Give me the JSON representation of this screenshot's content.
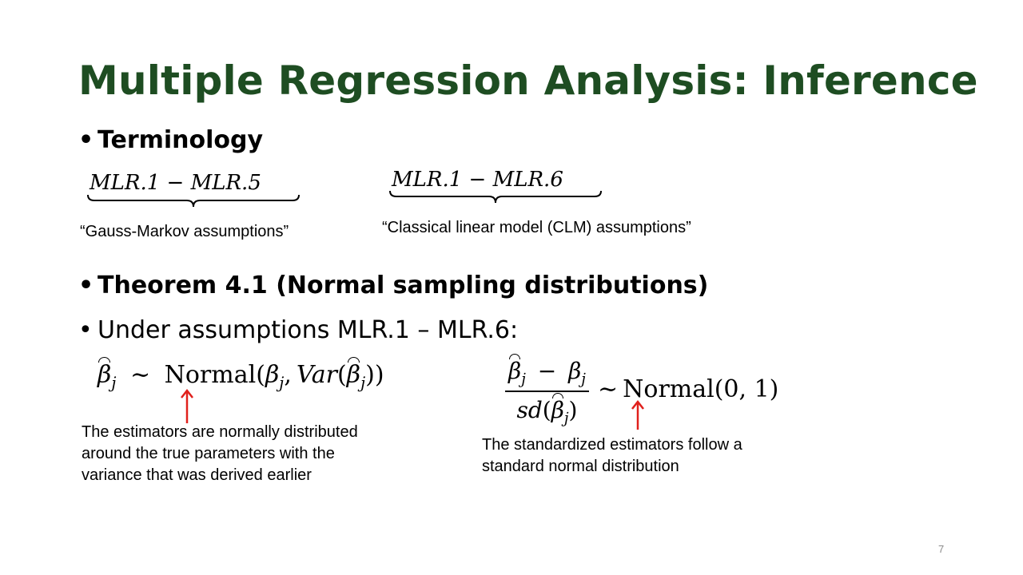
{
  "slide": {
    "title": "Multiple Regression Analysis: Inference",
    "page_number": "7"
  },
  "bullets": {
    "marker": "•",
    "terminology": "Terminology",
    "theorem": "Theorem 4.1 (Normal sampling distributions)",
    "under": "Under assumptions MLR.1 – MLR.6:"
  },
  "terminology": {
    "gm_math": "MLR.1 − MLR.5",
    "gm_caption": "“Gauss-Markov assumptions”",
    "clm_math": "MLR.1 − MLR.6",
    "clm_caption": "“Classical linear model (CLM) assumptions”"
  },
  "formulas": {
    "left": {
      "beta": "β",
      "sub": "j",
      "sim": "∼",
      "normal": "Normal",
      "open": "(",
      "comma": ",",
      "var": "Var",
      "close": "))"
    },
    "right": {
      "beta": "β",
      "sub": "j",
      "minus": "−",
      "sd": "sd",
      "sim": "∼",
      "normal": "Normal(0, 1)"
    }
  },
  "annotations": {
    "left": "The estimators are normally distributed around the true parameters with the variance that was derived earlier",
    "right": "The standardized estimators follow a standard normal distribution"
  },
  "colors": {
    "title": "#1e4d22",
    "arrow": "#e0201c"
  }
}
